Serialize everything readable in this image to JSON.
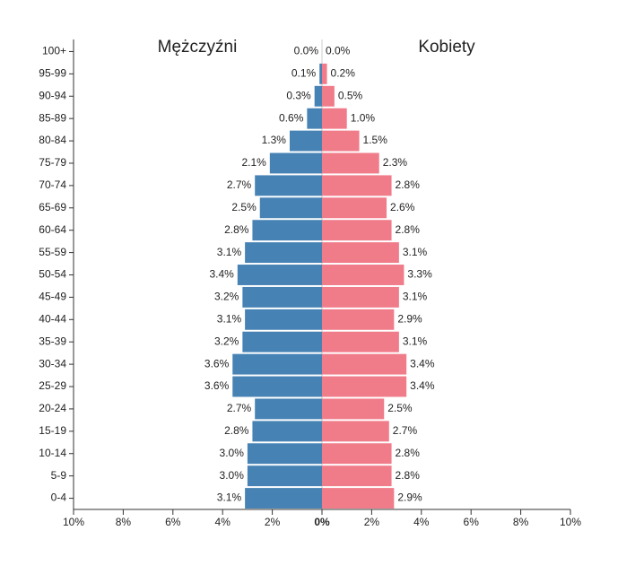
{
  "chart_data": {
    "type": "pyramid",
    "categories": [
      "100+",
      "95-99",
      "90-94",
      "85-89",
      "80-84",
      "75-79",
      "70-74",
      "65-69",
      "60-64",
      "55-59",
      "50-54",
      "45-49",
      "40-44",
      "35-39",
      "30-34",
      "25-29",
      "20-24",
      "15-19",
      "10-14",
      "5-9",
      "0-4"
    ],
    "series": [
      {
        "name": "Mężczyźni",
        "color": "#4682b4",
        "side": "left",
        "values": [
          0.0,
          0.1,
          0.3,
          0.6,
          1.3,
          2.1,
          2.7,
          2.5,
          2.8,
          3.1,
          3.4,
          3.2,
          3.1,
          3.2,
          3.6,
          3.6,
          2.7,
          2.8,
          3.0,
          3.0,
          3.1
        ],
        "value_labels": [
          "0.0%",
          "0.1%",
          "0.3%",
          "0.6%",
          "1.3%",
          "2.1%",
          "2.7%",
          "2.5%",
          "2.8%",
          "3.1%",
          "3.4%",
          "3.2%",
          "3.1%",
          "3.2%",
          "3.6%",
          "3.6%",
          "2.7%",
          "2.8%",
          "3.0%",
          "3.0%",
          "3.1%"
        ]
      },
      {
        "name": "Kobiety",
        "color": "#f07b89",
        "side": "right",
        "values": [
          0.0,
          0.2,
          0.5,
          1.0,
          1.5,
          2.3,
          2.8,
          2.6,
          2.8,
          3.1,
          3.3,
          3.1,
          2.9,
          3.1,
          3.4,
          3.4,
          2.5,
          2.7,
          2.8,
          2.8,
          2.9
        ],
        "value_labels": [
          "0.0%",
          "0.2%",
          "0.5%",
          "1.0%",
          "1.5%",
          "2.3%",
          "2.8%",
          "2.6%",
          "2.8%",
          "3.1%",
          "3.3%",
          "3.1%",
          "2.9%",
          "3.1%",
          "3.4%",
          "3.4%",
          "2.5%",
          "2.7%",
          "2.8%",
          "2.8%",
          "2.9%"
        ]
      }
    ],
    "xlim": [
      -10,
      10
    ],
    "xticks": [
      {
        "value": -10,
        "label": "10%"
      },
      {
        "value": -8,
        "label": "8%"
      },
      {
        "value": -6,
        "label": "6%"
      },
      {
        "value": -4,
        "label": "4%"
      },
      {
        "value": -2,
        "label": "2%"
      },
      {
        "value": 0,
        "label": "0%"
      },
      {
        "value": 2,
        "label": "2%"
      },
      {
        "value": 4,
        "label": "4%"
      },
      {
        "value": 6,
        "label": "6%"
      },
      {
        "value": 8,
        "label": "8%"
      },
      {
        "value": 10,
        "label": "10%"
      }
    ]
  }
}
